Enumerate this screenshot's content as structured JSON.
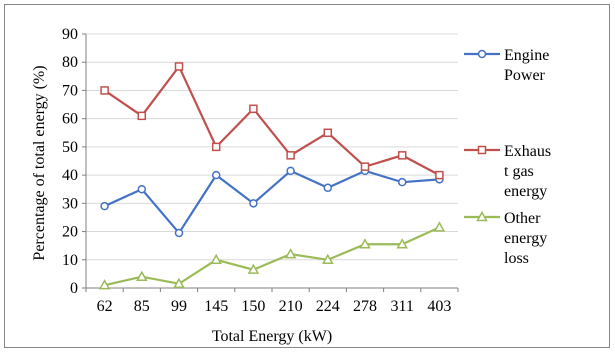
{
  "chart_data": {
    "type": "line",
    "title": "",
    "xlabel": "Total Energy (kW)",
    "ylabel": "Percentage of total energy (%)",
    "categories": [
      "62",
      "85",
      "99",
      "145",
      "150",
      "210",
      "224",
      "278",
      "311",
      "403"
    ],
    "ylim": [
      0,
      90
    ],
    "yticks": [
      0,
      10,
      20,
      30,
      40,
      50,
      60,
      70,
      80,
      90
    ],
    "grid": true,
    "legend_position": "right",
    "series": [
      {
        "name": "Engine Power",
        "legend_lines": [
          "Engine",
          "Power"
        ],
        "color": "#4472C4",
        "marker": "circle",
        "values": [
          29,
          35,
          19.5,
          40,
          30,
          41.5,
          35.5,
          41.5,
          37.5,
          38.5
        ]
      },
      {
        "name": "Exhaust gas energy",
        "legend_lines": [
          "Exhaus",
          "t gas",
          "energy"
        ],
        "color": "#C0504D",
        "marker": "square",
        "values": [
          70,
          61,
          78.5,
          50,
          63.5,
          47,
          55,
          43,
          47,
          40
        ]
      },
      {
        "name": "Other energy loss",
        "legend_lines": [
          "Other",
          "energy",
          "loss"
        ],
        "color": "#9BBB59",
        "marker": "triangle",
        "values": [
          1,
          4,
          1.5,
          10,
          6.5,
          12,
          10,
          15.5,
          15.5,
          21.5
        ]
      }
    ]
  }
}
